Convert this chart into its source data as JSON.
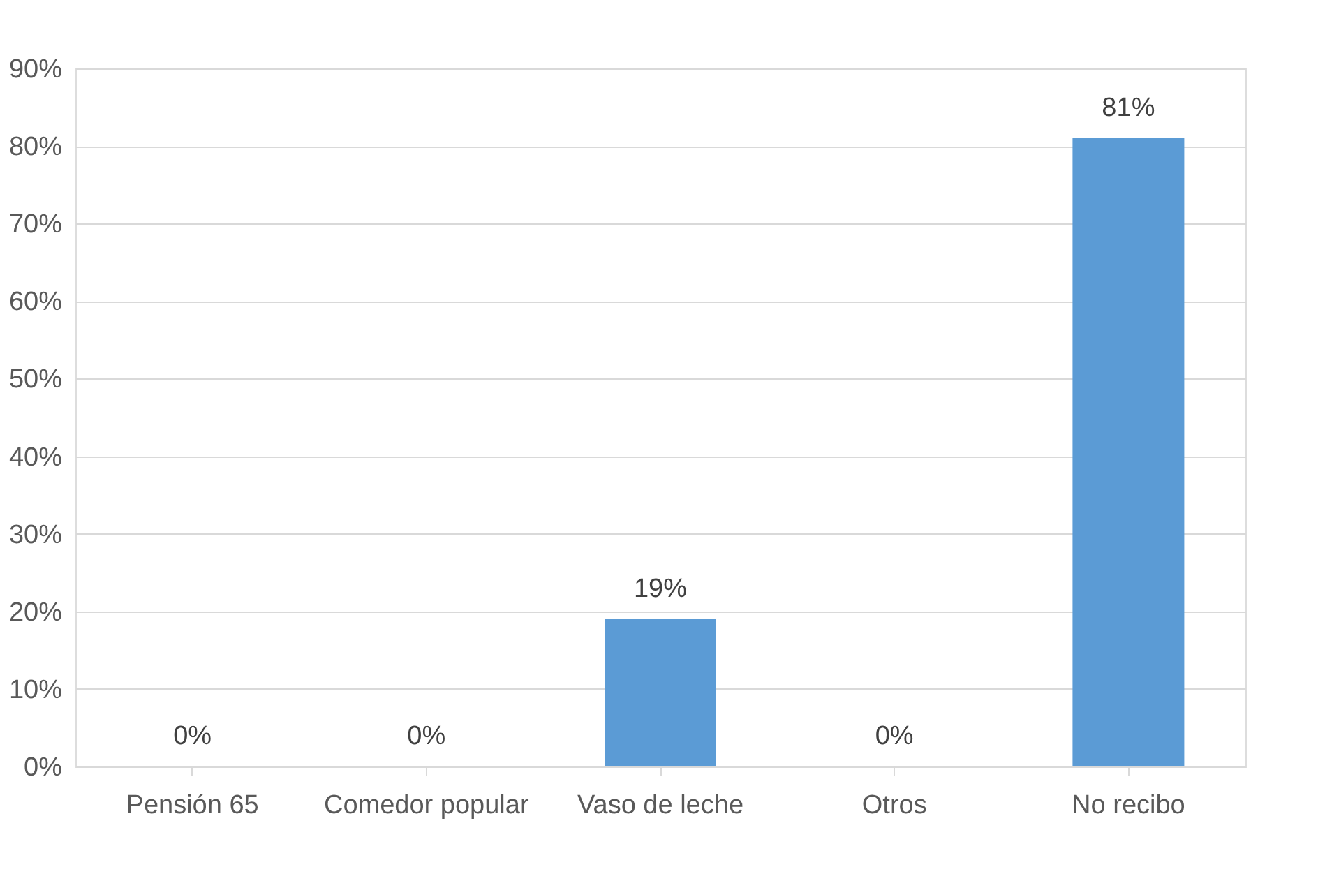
{
  "chart_data": {
    "type": "bar",
    "categories": [
      "Pensión 65",
      "Comedor popular",
      "Vaso de leche",
      "Otros",
      "No recibo"
    ],
    "values": [
      0,
      0,
      19,
      0,
      81
    ],
    "value_labels": [
      "0%",
      "0%",
      "19%",
      "0%",
      "81%"
    ],
    "color": "#5b9bd5",
    "ylim": [
      0,
      90
    ],
    "yticks": [
      {
        "value": 0,
        "label": "0%"
      },
      {
        "value": 10,
        "label": "10%"
      },
      {
        "value": 20,
        "label": "20%"
      },
      {
        "value": 30,
        "label": "30%"
      },
      {
        "value": 40,
        "label": "40%"
      },
      {
        "value": 50,
        "label": "50%"
      },
      {
        "value": 60,
        "label": "60%"
      },
      {
        "value": 70,
        "label": "70%"
      },
      {
        "value": 80,
        "label": "80%"
      },
      {
        "value": 90,
        "label": "90%"
      }
    ],
    "grid": "y"
  }
}
